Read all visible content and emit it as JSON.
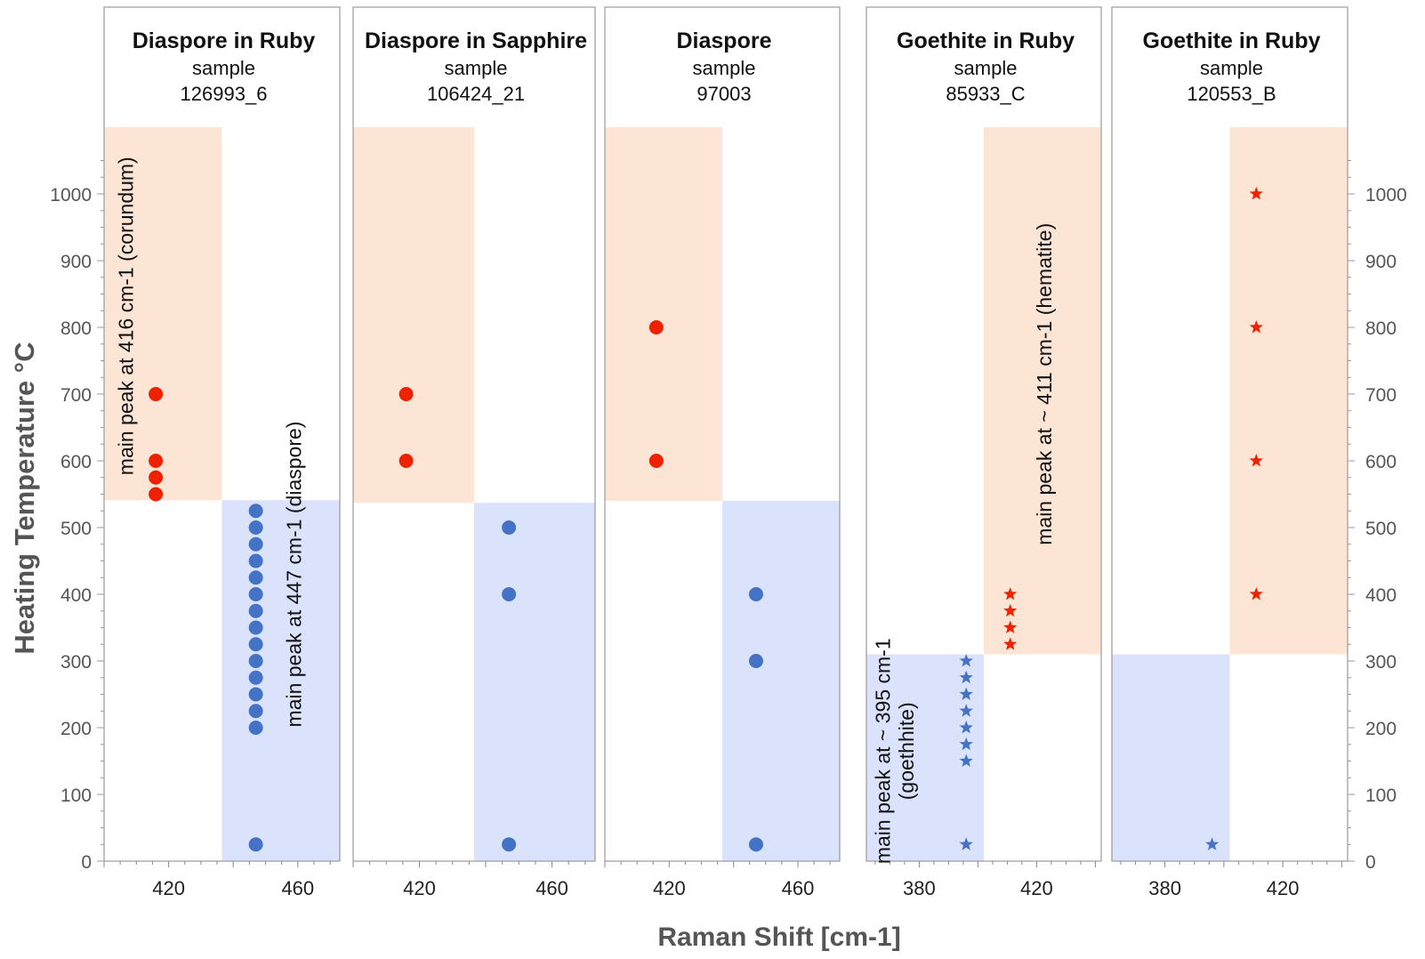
{
  "chart_data": {
    "type": "scatter",
    "ylabel": "Heating Temperature  °C",
    "xlabel": "Raman Shift [cm-1]",
    "ylim": [
      0,
      1100
    ],
    "yticks": [
      0,
      100,
      200,
      300,
      400,
      500,
      600,
      700,
      800,
      900,
      1000
    ],
    "colors": {
      "red": "#ee2200",
      "blue": "#4472c4",
      "red_region": "#fde5d6",
      "blue_region": "#dae3fb",
      "axis_text": "#555555",
      "frame": "#999999"
    },
    "panels": [
      {
        "title": "Diaspore in Ruby",
        "subtitle": "sample",
        "sample_id": "126993_6",
        "xlim": [
          400,
          473
        ],
        "xticks": [
          420,
          460
        ],
        "marker": "circle",
        "regions": [
          {
            "color": "red",
            "x": [
              400,
              436.5
            ],
            "y": [
              541,
              1100
            ]
          },
          {
            "color": "blue",
            "x": [
              436.5,
              473
            ],
            "y": [
              0,
              541
            ]
          }
        ],
        "series": [
          {
            "name": "corundum",
            "color": "red",
            "points": [
              [
                416,
                700
              ],
              [
                416,
                600
              ],
              [
                416,
                575
              ],
              [
                416,
                550
              ]
            ]
          },
          {
            "name": "diaspore",
            "color": "blue",
            "points": [
              [
                447,
                525
              ],
              [
                447,
                500
              ],
              [
                447,
                475
              ],
              [
                447,
                450
              ],
              [
                447,
                425
              ],
              [
                447,
                400
              ],
              [
                447,
                375
              ],
              [
                447,
                350
              ],
              [
                447,
                325
              ],
              [
                447,
                300
              ],
              [
                447,
                275
              ],
              [
                447,
                250
              ],
              [
                447,
                225
              ],
              [
                447,
                200
              ],
              [
                447,
                25
              ]
            ]
          }
        ],
        "annotations": [
          {
            "text": "main peak at 416 cm-1 (corundum)",
            "x": 409,
            "y": 817
          },
          {
            "text": "main peak at 447 cm-1 (diaspore)",
            "x": 461,
            "y": 430
          }
        ]
      },
      {
        "title": "Diaspore in Sapphire",
        "subtitle": "sample",
        "sample_id": "106424_21",
        "xlim": [
          400,
          473
        ],
        "xticks": [
          420,
          460
        ],
        "marker": "circle",
        "regions": [
          {
            "color": "red",
            "x": [
              400,
              436.5
            ],
            "y": [
              537,
              1100
            ]
          },
          {
            "color": "blue",
            "x": [
              436.5,
              473
            ],
            "y": [
              0,
              537
            ]
          }
        ],
        "series": [
          {
            "name": "corundum",
            "color": "red",
            "points": [
              [
                416,
                700
              ],
              [
                416,
                600
              ]
            ]
          },
          {
            "name": "diaspore",
            "color": "blue",
            "points": [
              [
                447,
                500
              ],
              [
                447,
                400
              ],
              [
                447,
                25
              ]
            ]
          }
        ],
        "annotations": []
      },
      {
        "title": "Diaspore",
        "subtitle": "sample",
        "sample_id": "97003",
        "xlim": [
          400,
          473
        ],
        "xticks": [
          420,
          460
        ],
        "marker": "circle",
        "regions": [
          {
            "color": "red",
            "x": [
              400,
              436.5
            ],
            "y": [
              540,
              1100
            ]
          },
          {
            "color": "blue",
            "x": [
              436.5,
              473
            ],
            "y": [
              0,
              540
            ]
          }
        ],
        "series": [
          {
            "name": "corundum",
            "color": "red",
            "points": [
              [
                416,
                800
              ],
              [
                416,
                600
              ]
            ]
          },
          {
            "name": "diaspore",
            "color": "blue",
            "points": [
              [
                447,
                400
              ],
              [
                447,
                300
              ],
              [
                447,
                25
              ]
            ]
          }
        ],
        "annotations": []
      },
      {
        "title": "Goethite in Ruby",
        "subtitle": "sample",
        "sample_id": "85933_C",
        "xlim": [
          362,
          442
        ],
        "xticks": [
          380,
          420
        ],
        "marker": "star",
        "regions": [
          {
            "color": "blue",
            "x": [
              362,
              402
            ],
            "y": [
              0,
              310
            ]
          },
          {
            "color": "red",
            "x": [
              402,
              442
            ],
            "y": [
              310,
              1100
            ]
          }
        ],
        "series": [
          {
            "name": "goethite",
            "color": "blue",
            "points": [
              [
                396,
                300
              ],
              [
                396,
                275
              ],
              [
                396,
                250
              ],
              [
                396,
                225
              ],
              [
                396,
                200
              ],
              [
                396,
                175
              ],
              [
                396,
                150
              ],
              [
                396,
                25
              ]
            ]
          },
          {
            "name": "hematite",
            "color": "red",
            "points": [
              [
                411,
                400
              ],
              [
                411,
                375
              ],
              [
                411,
                350
              ],
              [
                411,
                325
              ]
            ]
          }
        ],
        "annotations": [
          {
            "text": "main peak at ~ 395 cm-1",
            "x": 370,
            "y": 165
          },
          {
            "text": "(goethhite)",
            "x": 378,
            "y": 165
          },
          {
            "text": "main peak at ~ 411 cm-1 (hematite)",
            "x": 425,
            "y": 715
          }
        ]
      },
      {
        "title": "Goethite in Ruby",
        "subtitle": "sample",
        "sample_id": "120553_B",
        "xlim": [
          362,
          442
        ],
        "xticks": [
          380,
          420
        ],
        "marker": "star",
        "regions": [
          {
            "color": "blue",
            "x": [
              362,
              402
            ],
            "y": [
              0,
              310
            ]
          },
          {
            "color": "red",
            "x": [
              402,
              442
            ],
            "y": [
              310,
              1100
            ]
          }
        ],
        "series": [
          {
            "name": "goethite",
            "color": "blue",
            "points": [
              [
                396,
                25
              ]
            ]
          },
          {
            "name": "hematite",
            "color": "red",
            "points": [
              [
                411,
                1000
              ],
              [
                411,
                800
              ],
              [
                411,
                600
              ],
              [
                411,
                400
              ]
            ]
          }
        ],
        "annotations": []
      }
    ]
  }
}
